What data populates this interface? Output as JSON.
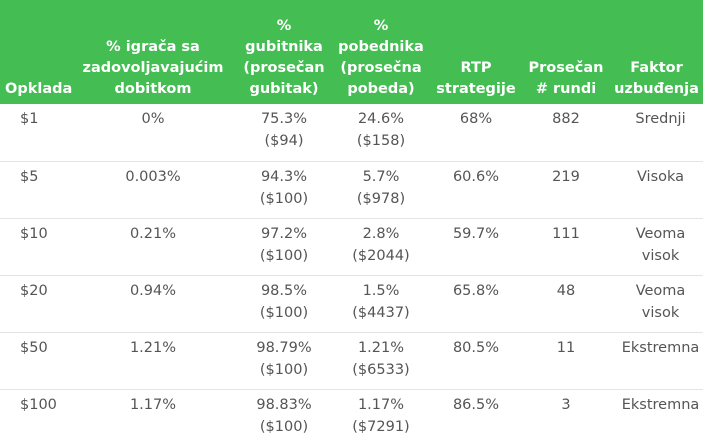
{
  "table": {
    "header_bg": "#44bd53",
    "headers": [
      [
        "Opklada"
      ],
      [
        "% igrača sa",
        "zadovoljavajućim",
        "dobitkom"
      ],
      [
        "%",
        "gubitnika",
        "(prosečan",
        "gubitak)"
      ],
      [
        "%",
        "pobednika",
        "(prosečna",
        "pobeda)"
      ],
      [
        "RTP",
        "strategije"
      ],
      [
        "Prosečan",
        "# rundi"
      ],
      [
        "Faktor",
        "uzbuđenja"
      ]
    ],
    "rows": [
      {
        "bet": "$1",
        "satisfied": "0%",
        "losers_pct": "75.3%",
        "losers_avg": "($94)",
        "winners_pct": "24.6%",
        "winners_avg": "($158)",
        "rtp": "68%",
        "rounds": "882",
        "excitement": "Srednji"
      },
      {
        "bet": "$5",
        "satisfied": "0.003%",
        "losers_pct": "94.3%",
        "losers_avg": "($100)",
        "winners_pct": "5.7%",
        "winners_avg": "($978)",
        "rtp": "60.6%",
        "rounds": "219",
        "excitement": "Visoka"
      },
      {
        "bet": "$10",
        "satisfied": "0.21%",
        "losers_pct": "97.2%",
        "losers_avg": "($100)",
        "winners_pct": "2.8%",
        "winners_avg": "($2044)",
        "rtp": "59.7%",
        "rounds": "111",
        "excitement": "Veoma visok"
      },
      {
        "bet": "$20",
        "satisfied": "0.94%",
        "losers_pct": "98.5%",
        "losers_avg": "($100)",
        "winners_pct": "1.5%",
        "winners_avg": "($4437)",
        "rtp": "65.8%",
        "rounds": "48",
        "excitement": "Veoma visok"
      },
      {
        "bet": "$50",
        "satisfied": "1.21%",
        "losers_pct": "98.79%",
        "losers_avg": "($100)",
        "winners_pct": "1.21%",
        "winners_avg": "($6533)",
        "rtp": "80.5%",
        "rounds": "11",
        "excitement": "Ekstremna"
      },
      {
        "bet": "$100",
        "satisfied": "1.17%",
        "losers_pct": "98.83%",
        "losers_avg": "($100)",
        "winners_pct": "1.17%",
        "winners_avg": "($7291)",
        "rtp": "86.5%",
        "rounds": "3",
        "excitement": "Ekstremna"
      }
    ]
  }
}
